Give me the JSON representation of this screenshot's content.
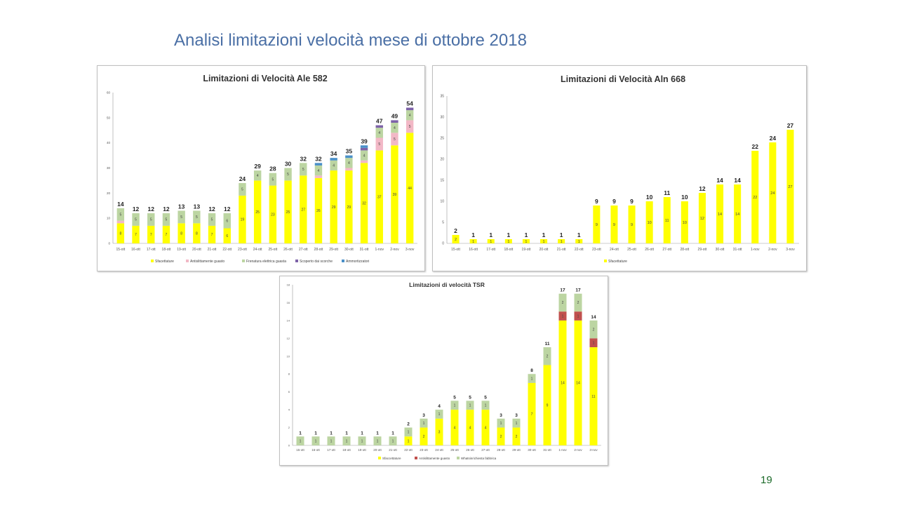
{
  "slide": {
    "title": "Analisi limitazioni velocità mese di ottobre 2018",
    "page_number": "19"
  },
  "colors": {
    "yellow": "#ffff00",
    "pink": "#f2b8c6",
    "green": "#bcd5a2",
    "purple": "#7d62a8",
    "blue": "#4a90c8",
    "red": "#c0504d",
    "title_blue": "#4a6fa5",
    "page_green": "#1d6b2a"
  },
  "chart_data": [
    {
      "type": "bar",
      "stacked": true,
      "title": "Limitazioni di Velocità Ale 582",
      "categories": [
        "15-ott",
        "16-ott",
        "17-ott",
        "18-ott",
        "19-ott",
        "20-ott",
        "21-ott",
        "22-ott",
        "23-ott",
        "24-ott",
        "25-ott",
        "26-ott",
        "27-ott",
        "28-ott",
        "29-ott",
        "30-ott",
        "31-ott",
        "1-nov",
        "2-nov",
        "3-nov"
      ],
      "series": [
        {
          "name": "Sfacettature",
          "color": "#ffff00",
          "values": [
            8,
            7,
            7,
            7,
            8,
            8,
            7,
            6,
            19,
            25,
            23,
            25,
            27,
            26,
            29,
            29,
            32,
            37,
            39,
            44
          ]
        },
        {
          "name": "Antislittamente guasto",
          "color": "#f2b8c6",
          "values": [
            1,
            0,
            0,
            0,
            0,
            0,
            0,
            0,
            0,
            0,
            0,
            0,
            0,
            1,
            0,
            1,
            1,
            5,
            5,
            5
          ]
        },
        {
          "name": "Frenatura elettrica guasta",
          "color": "#bcd5a2",
          "values": [
            5,
            5,
            5,
            5,
            5,
            5,
            5,
            6,
            5,
            4,
            5,
            5,
            5,
            4,
            4,
            4,
            4,
            4,
            4,
            4
          ]
        },
        {
          "name": "Scoperto dai scorche",
          "color": "#7d62a8",
          "values": [
            0,
            0,
            0,
            0,
            0,
            0,
            0,
            0,
            0,
            0,
            0,
            0,
            0,
            0,
            0,
            0,
            1,
            1,
            1,
            1
          ]
        },
        {
          "name": "Ammortizzatori",
          "color": "#4a90c8",
          "values": [
            0,
            0,
            0,
            0,
            0,
            0,
            0,
            0,
            0,
            0,
            0,
            0,
            0,
            1,
            1,
            1,
            1,
            0,
            0,
            0
          ]
        }
      ],
      "totals": [
        14,
        12,
        12,
        12,
        13,
        13,
        12,
        12,
        24,
        29,
        28,
        30,
        32,
        32,
        34,
        35,
        39,
        47,
        49,
        54
      ],
      "segment_labels": [
        [
          "8",
          "1",
          "5"
        ],
        [
          "7",
          "5"
        ],
        [
          "7",
          "5"
        ],
        [
          "7",
          "5"
        ],
        [
          "8",
          "5"
        ],
        [
          "8",
          "5"
        ],
        [
          "7",
          "5"
        ],
        [
          "6",
          "6"
        ],
        [
          "19",
          "5"
        ],
        [
          "25",
          "4"
        ],
        [
          "23",
          "5"
        ],
        [
          "25",
          "5"
        ],
        [
          "27",
          "5"
        ],
        [
          "26",
          "1",
          "4"
        ],
        [
          "29",
          "4"
        ],
        [
          "29",
          "1",
          "4"
        ],
        [
          "32",
          "1",
          "4"
        ],
        [
          "37",
          "5",
          "4"
        ],
        [
          "39",
          "5",
          "4"
        ],
        [
          "44",
          "5",
          "4"
        ]
      ],
      "ylim": [
        0,
        60
      ],
      "yticks": [
        0,
        10,
        20,
        30,
        40,
        50,
        60
      ],
      "legend": "bottom"
    },
    {
      "type": "bar",
      "title": "Limitazioni di Velocità Aln 668",
      "categories": [
        "15-ott",
        "16-ott",
        "17-ott",
        "18-ott",
        "19-ott",
        "20-ott",
        "21-ott",
        "22-ott",
        "23-ott",
        "24-ott",
        "25-ott",
        "26-ott",
        "27-ott",
        "28-ott",
        "29-ott",
        "30-ott",
        "31-ott",
        "1-nov",
        "2-nov",
        "3-nov"
      ],
      "series": [
        {
          "name": "Sfacettature",
          "color": "#ffff00",
          "values": [
            2,
            1,
            1,
            1,
            1,
            1,
            1,
            1,
            9,
            9,
            9,
            10,
            11,
            10,
            12,
            14,
            14,
            22,
            24,
            27
          ]
        }
      ],
      "totals": [
        2,
        1,
        1,
        1,
        1,
        1,
        1,
        1,
        9,
        9,
        9,
        10,
        11,
        10,
        12,
        14,
        14,
        22,
        24,
        27
      ],
      "ylim": [
        0,
        35
      ],
      "yticks": [
        0,
        5,
        10,
        15,
        20,
        25,
        30,
        35
      ],
      "legend": "bottom"
    },
    {
      "type": "bar",
      "stacked": true,
      "title": "Limitazioni di velocità TSR",
      "categories": [
        "15-ott",
        "16-ott",
        "17-ott",
        "18-ott",
        "19-ott",
        "20-ott",
        "21-ott",
        "22-ott",
        "23-ott",
        "24-ott",
        "25-ott",
        "26-ott",
        "27-ott",
        "28-ott",
        "29-ott",
        "30-ott",
        "31-ott",
        "1-nov",
        "2-nov",
        "3-nov"
      ],
      "series": [
        {
          "name": "Sfaccettature",
          "color": "#ffff00",
          "values": [
            0,
            0,
            0,
            0,
            0,
            0,
            0,
            1,
            2,
            3,
            4,
            4,
            4,
            2,
            2,
            7,
            9,
            14,
            14,
            11
          ]
        },
        {
          "name": "Antislittamente guasto",
          "color": "#c0504d",
          "values": [
            0,
            0,
            0,
            0,
            0,
            0,
            0,
            0,
            0,
            0,
            0,
            0,
            0,
            0,
            0,
            0,
            0,
            1,
            1,
            1
          ]
        },
        {
          "name": "Whatsinrichiesta fabbrica",
          "color": "#bcd5a2",
          "values": [
            1,
            1,
            1,
            1,
            1,
            1,
            1,
            1,
            1,
            1,
            1,
            1,
            1,
            1,
            1,
            1,
            2,
            2,
            2,
            2
          ]
        }
      ],
      "totals": [
        1,
        1,
        1,
        1,
        1,
        1,
        1,
        2,
        3,
        4,
        5,
        5,
        5,
        3,
        3,
        8,
        11,
        17,
        17,
        14
      ],
      "segment_labels": [
        [
          "1"
        ],
        [
          "1"
        ],
        [
          "1"
        ],
        [
          "1"
        ],
        [
          "1"
        ],
        [
          "1"
        ],
        [
          "1"
        ],
        [
          "1",
          "1"
        ],
        [
          "2",
          "1"
        ],
        [
          "3",
          "1"
        ],
        [
          "4",
          "1"
        ],
        [
          "4",
          "1"
        ],
        [
          "4",
          "1"
        ],
        [
          "2",
          "1"
        ],
        [
          "2",
          "1"
        ],
        [
          "7",
          "1"
        ],
        [
          "9",
          "2"
        ],
        [
          "14",
          "1",
          "2"
        ],
        [
          "14",
          "1",
          "2"
        ],
        [
          "11",
          "1",
          "2"
        ]
      ],
      "ylim": [
        0,
        18
      ],
      "yticks": [
        0,
        2,
        4,
        6,
        8,
        10,
        12,
        14,
        16,
        18
      ],
      "legend": "bottom"
    }
  ]
}
